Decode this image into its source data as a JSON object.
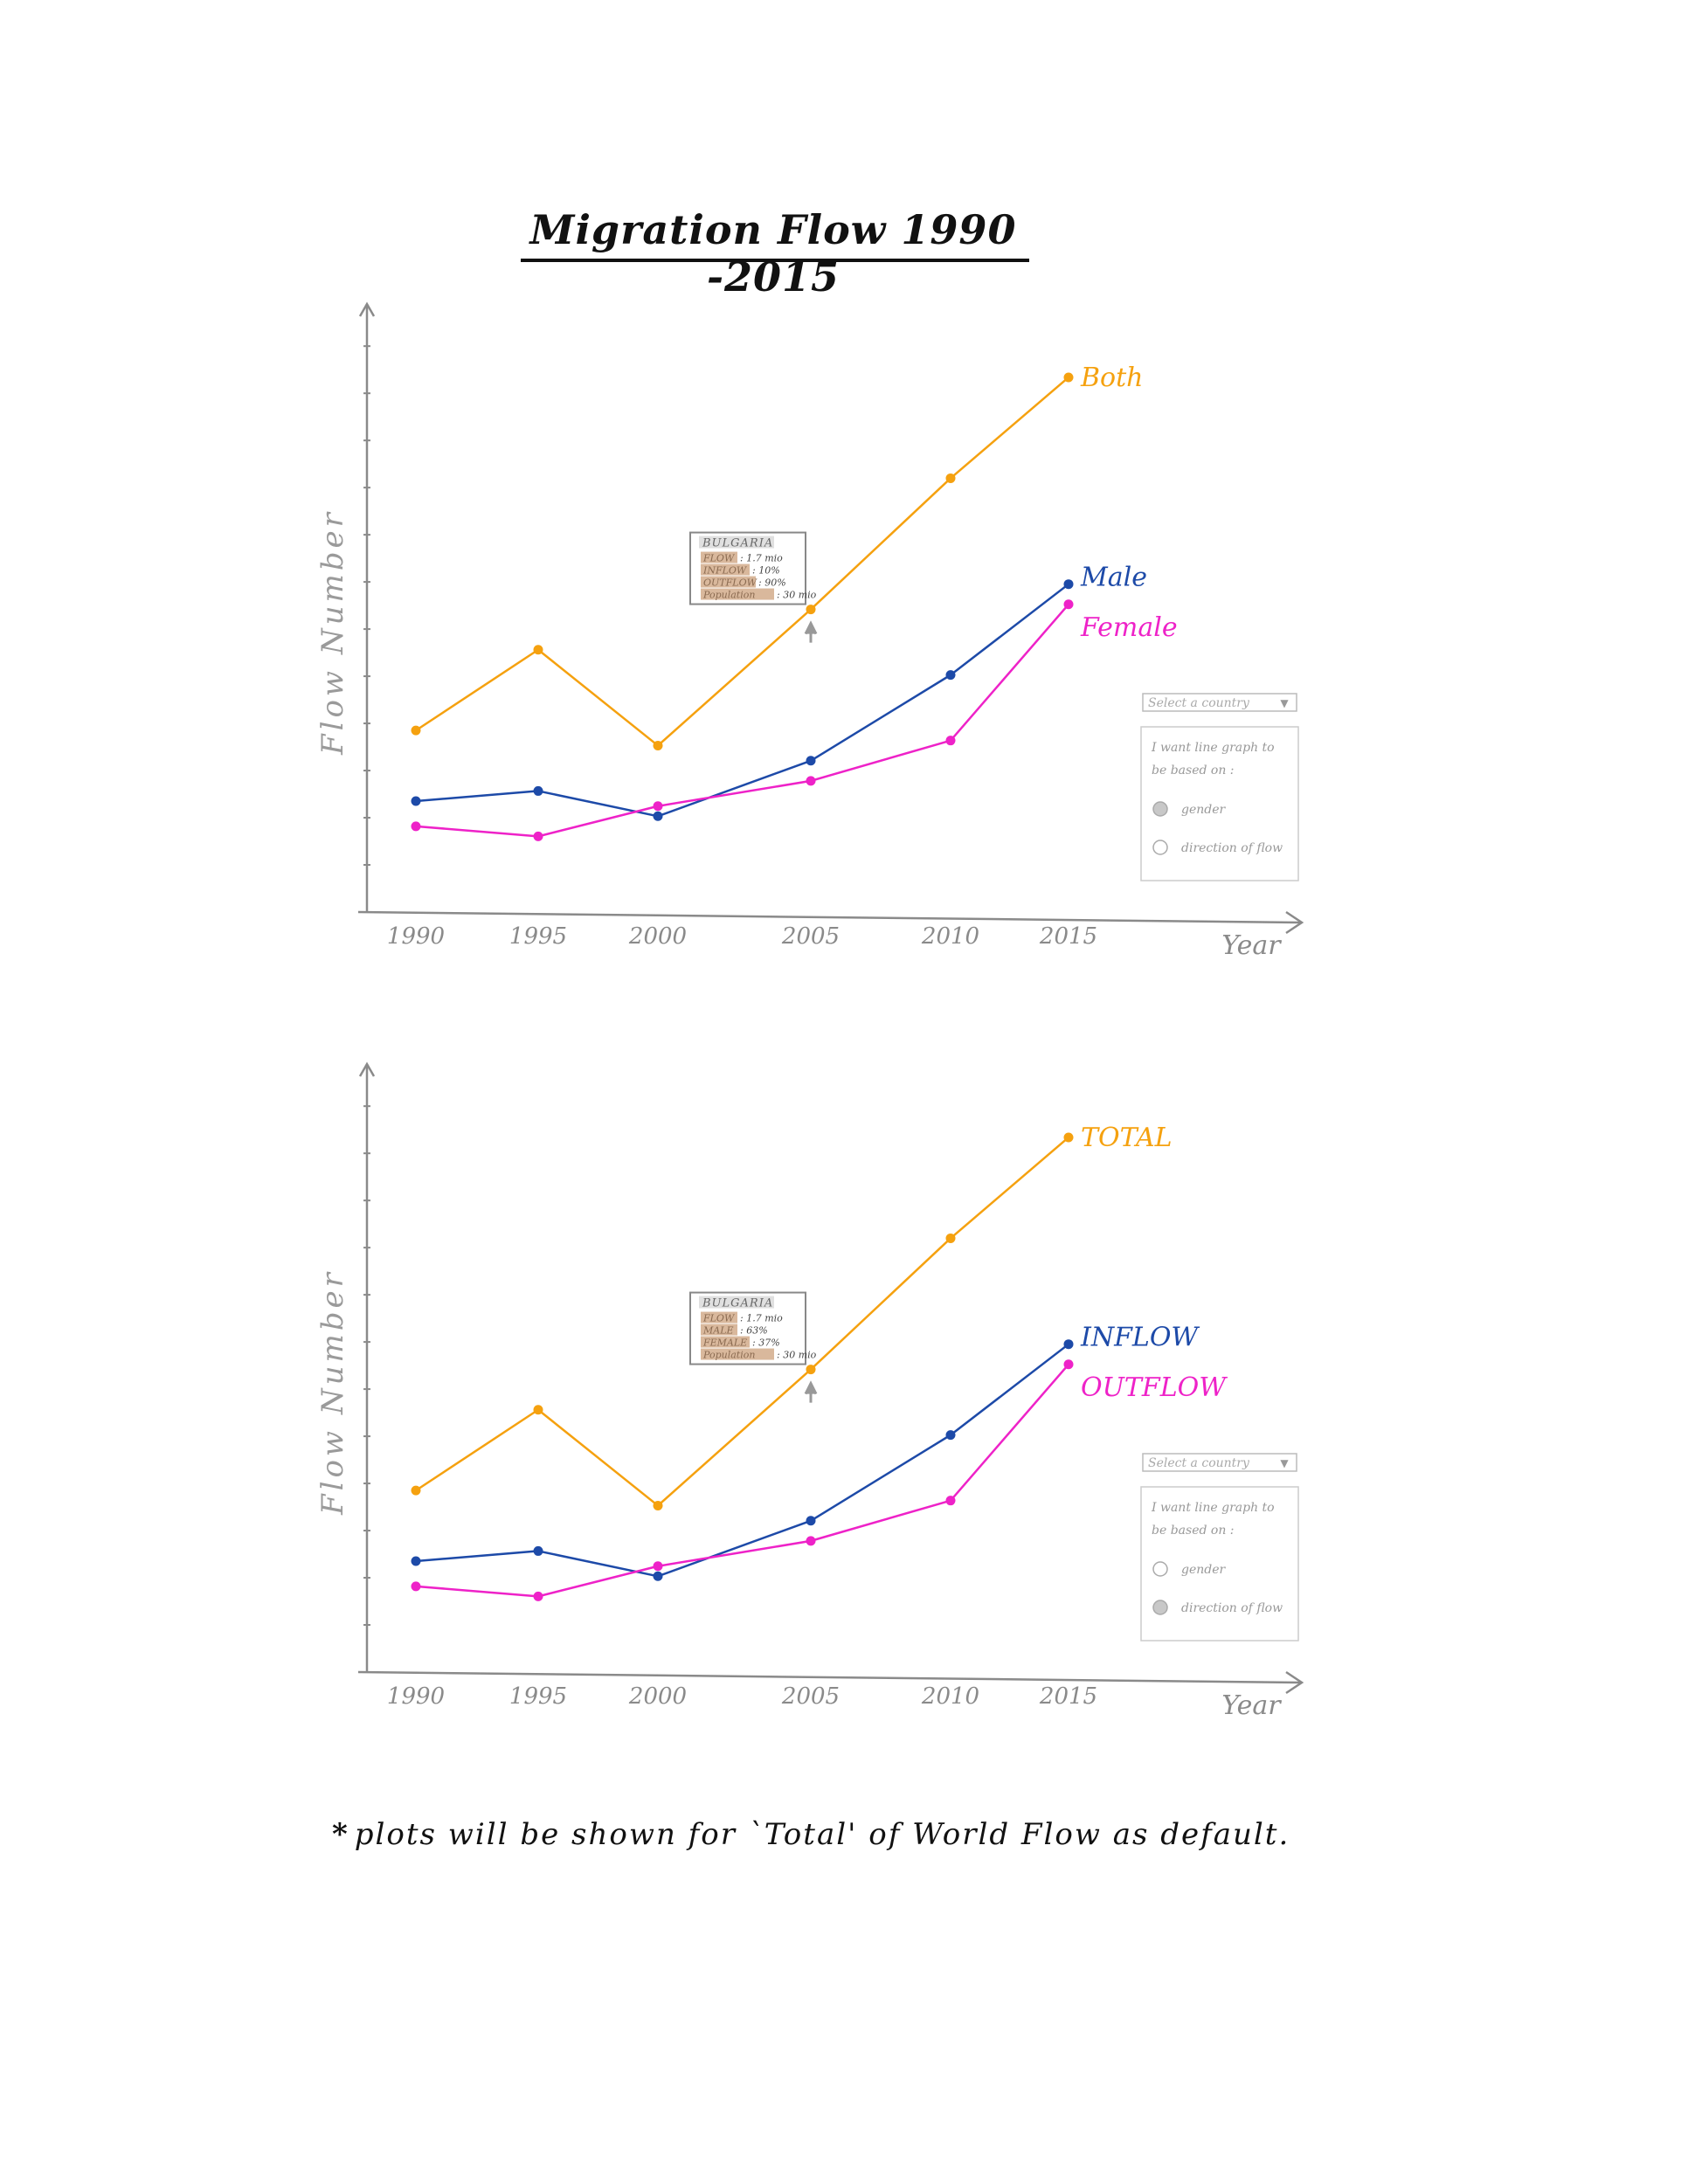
{
  "title": "Migration Flow 1990 -2015",
  "footnote": {
    "star": "*",
    "text": "plots will be shown for `Total' of World Flow as default."
  },
  "colors": {
    "orange": "#f5a10f",
    "blue": "#1d4aa8",
    "magenta": "#ee22c8",
    "axis": "#8a8a8a",
    "tooltip_highlight": "#d9b89c"
  },
  "chart_data": [
    {
      "type": "line",
      "title": "",
      "xlabel": "Year",
      "ylabel": "Flow Number",
      "x": [
        1990,
        1995,
        2000,
        2005,
        2010,
        2015
      ],
      "x_tick_labels": [
        "1990",
        "1995",
        "2000",
        "2005",
        "2010",
        "2015"
      ],
      "y_tick_count": 12,
      "grid": false,
      "series": [
        {
          "name": "Both",
          "color": "#f5a10f",
          "values": [
            3.6,
            5.2,
            3.3,
            6.0,
            8.6,
            10.6
          ]
        },
        {
          "name": "Male",
          "color": "#1d4aa8",
          "values": [
            2.2,
            2.4,
            1.9,
            3.0,
            4.7,
            6.5
          ]
        },
        {
          "name": "Female",
          "color": "#ee22c8",
          "values": [
            1.7,
            1.5,
            2.1,
            2.6,
            3.4,
            6.1
          ]
        }
      ],
      "tooltip": {
        "country": "BULGARIA",
        "rows": [
          {
            "label": "FLOW",
            "value": ": 1.7 mio"
          },
          {
            "label": "INFLOW",
            "value": ": 10%"
          },
          {
            "label": "OUTFLOW",
            "value": ": 90%"
          },
          {
            "label": "Population",
            "value": ": 30 mio"
          }
        ]
      },
      "controls": {
        "select_placeholder": "Select a country",
        "select_arrow": "▼",
        "question": "I want line graph to be based on :",
        "options": [
          {
            "label": "gender",
            "selected": true
          },
          {
            "label": "direction of flow",
            "selected": false
          }
        ]
      }
    },
    {
      "type": "line",
      "title": "",
      "xlabel": "Year",
      "ylabel": "Flow Number",
      "x": [
        1990,
        1995,
        2000,
        2005,
        2010,
        2015
      ],
      "x_tick_labels": [
        "1990",
        "1995",
        "2000",
        "2005",
        "2010",
        "2015"
      ],
      "y_tick_count": 12,
      "grid": false,
      "series": [
        {
          "name": "TOTAL",
          "color": "#f5a10f",
          "values": [
            3.6,
            5.2,
            3.3,
            6.0,
            8.6,
            10.6
          ]
        },
        {
          "name": "INFLOW",
          "color": "#1d4aa8",
          "values": [
            2.2,
            2.4,
            1.9,
            3.0,
            4.7,
            6.5
          ]
        },
        {
          "name": "OUTFLOW",
          "color": "#ee22c8",
          "values": [
            1.7,
            1.5,
            2.1,
            2.6,
            3.4,
            6.1
          ]
        }
      ],
      "tooltip": {
        "country": "BULGARIA",
        "rows": [
          {
            "label": "FLOW",
            "value": ": 1.7 mio"
          },
          {
            "label": "MALE",
            "value": ": 63%"
          },
          {
            "label": "FEMALE",
            "value": ": 37%"
          },
          {
            "label": "Population",
            "value": ": 30 mio"
          }
        ]
      },
      "controls": {
        "select_placeholder": "Select a country",
        "select_arrow": "▼",
        "question": "I want line graph to be based on :",
        "options": [
          {
            "label": "gender",
            "selected": false
          },
          {
            "label": "direction of flow",
            "selected": true
          }
        ]
      }
    }
  ]
}
